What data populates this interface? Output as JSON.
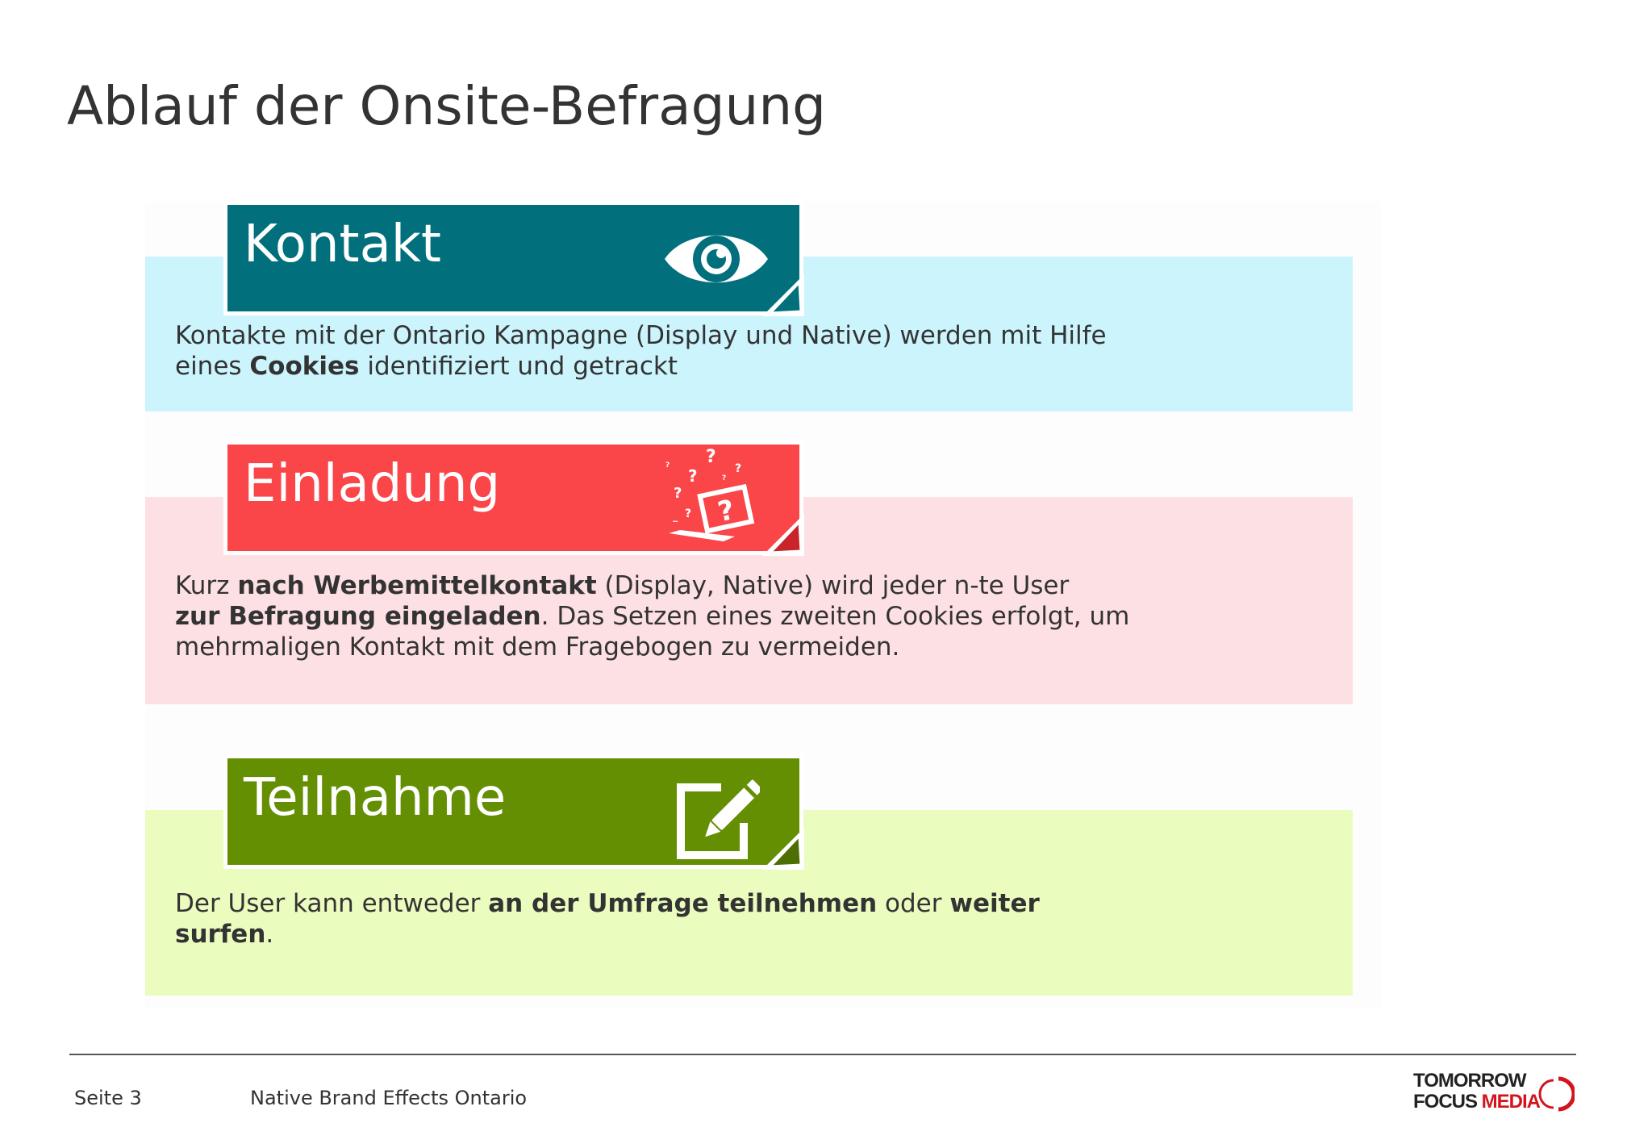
{
  "page": {
    "title": "Ablauf der Onsite-Befragung"
  },
  "steps": [
    {
      "label": "Kontakt",
      "icon": "eye-icon",
      "color": "#01707c",
      "band_color": "#cbf4fd",
      "text_runs": [
        {
          "text": "Kontakte mit der Ontario Kampagne (Display und Native) werden mit Hilfe",
          "bold": false
        },
        {
          "text": "eines ",
          "bold": false,
          "break_before": true
        },
        {
          "text": "Cookies",
          "bold": true
        },
        {
          "text": " identifiziert und getrackt",
          "bold": false
        }
      ]
    },
    {
      "label": "Einladung",
      "icon": "laptop-question-icon",
      "color": "#fa4549",
      "band_color": "#fde0e3",
      "text_runs": [
        {
          "text": "Kurz ",
          "bold": false
        },
        {
          "text": "nach Werbemittelkontakt",
          "bold": true
        },
        {
          "text": " (Display, Native) wird jeder n-te User",
          "bold": false
        },
        {
          "text": "zur Befragung eingeladen",
          "bold": true,
          "break_before": true
        },
        {
          "text": ". Das Setzen eines  zweiten Cookies erfolgt, um",
          "bold": false
        },
        {
          "text": "mehrmaligen Kontakt mit dem Fragebogen zu vermeiden.",
          "bold": false,
          "break_before": true
        }
      ]
    },
    {
      "label": "Teilnahme",
      "icon": "edit-icon",
      "color": "#658f03",
      "band_color": "#ebfcbf",
      "text_runs": [
        {
          "text": "Der User kann entweder ",
          "bold": false
        },
        {
          "text": "an der Umfrage teilnehmen",
          "bold": true
        },
        {
          "text": " oder ",
          "bold": false
        },
        {
          "text": "weiter",
          "bold": true
        },
        {
          "text": "surfen",
          "bold": true,
          "break_before": true
        },
        {
          "text": ".",
          "bold": false
        }
      ]
    }
  ],
  "footer": {
    "page_number": "Seite 3",
    "title": "Native Brand Effects Ontario",
    "logo": {
      "line1": "TOMORROW",
      "line2a": "FOCUS",
      "line2b": "MEDIA",
      "accent": "#d4141c"
    }
  }
}
